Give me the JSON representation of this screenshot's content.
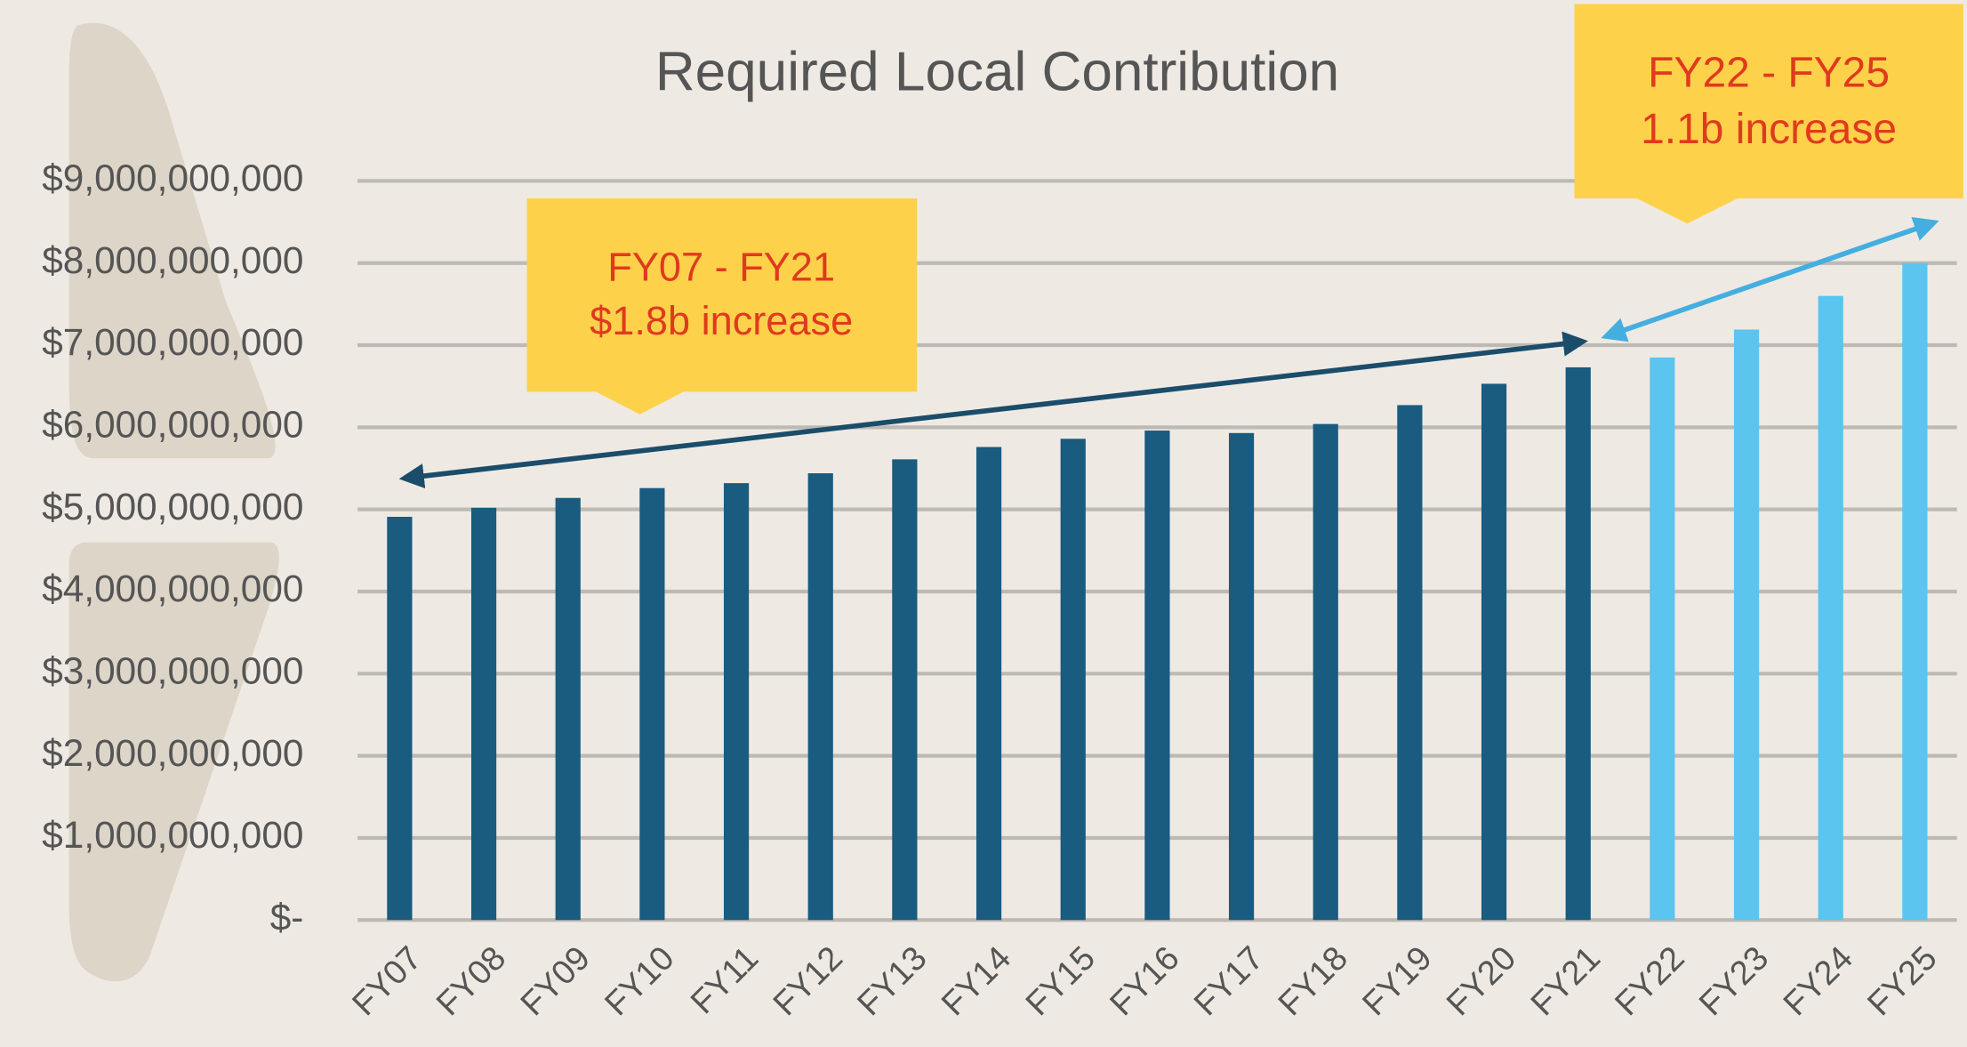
{
  "chart_data": {
    "type": "bar",
    "title": "Required Local Contribution",
    "categories": [
      "FY07",
      "FY08",
      "FY09",
      "FY10",
      "FY11",
      "FY12",
      "FY13",
      "FY14",
      "FY15",
      "FY16",
      "FY17",
      "FY18",
      "FY19",
      "FY20",
      "FY21",
      "FY22",
      "FY23",
      "FY24",
      "FY25"
    ],
    "values": [
      4910000000,
      5020000000,
      5140000000,
      5260000000,
      5320000000,
      5440000000,
      5610000000,
      5760000000,
      5860000000,
      5960000000,
      5930000000,
      6040000000,
      6270000000,
      6530000000,
      6730000000,
      6850000000,
      7190000000,
      7600000000,
      8000000000
    ],
    "colors": [
      "#1a5b80",
      "#1a5b80",
      "#1a5b80",
      "#1a5b80",
      "#1a5b80",
      "#1a5b80",
      "#1a5b80",
      "#1a5b80",
      "#1a5b80",
      "#1a5b80",
      "#1a5b80",
      "#1a5b80",
      "#1a5b80",
      "#1a5b80",
      "#1a5b80",
      "#5bc4ef",
      "#5bc4ef",
      "#5bc4ef",
      "#5bc4ef"
    ],
    "ylim": [
      0,
      9000000000
    ],
    "yticks": [
      {
        "value": 0,
        "label": "$-"
      },
      {
        "value": 1000000000,
        "label": "$1,000,000,000"
      },
      {
        "value": 2000000000,
        "label": "$2,000,000,000"
      },
      {
        "value": 3000000000,
        "label": "$3,000,000,000"
      },
      {
        "value": 4000000000,
        "label": "$4,000,000,000"
      },
      {
        "value": 5000000000,
        "label": "$5,000,000,000"
      },
      {
        "value": 6000000000,
        "label": "$6,000,000,000"
      },
      {
        "value": 7000000000,
        "label": "$7,000,000,000"
      },
      {
        "value": 8000000000,
        "label": "$8,000,000,000"
      },
      {
        "value": 9000000000,
        "label": "$9,000,000,000"
      }
    ],
    "grid": true,
    "annotations": [
      {
        "lines": [
          "FY07 - FY21",
          "$1.8b increase"
        ]
      },
      {
        "lines": [
          "FY22 - FY25",
          "1.1b increase"
        ]
      }
    ]
  }
}
